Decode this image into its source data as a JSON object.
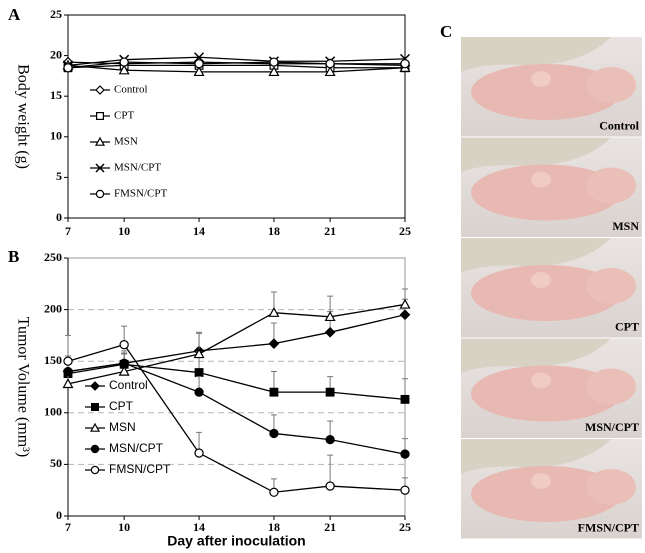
{
  "panels": {
    "a": "A",
    "b": "B",
    "c": "C"
  },
  "photos": [
    "Control",
    "MSN",
    "CPT",
    "MSN/CPT",
    "FMSN/CPT"
  ],
  "chart_data": [
    {
      "type": "line",
      "ylabel": "Body weight (g)",
      "x": [
        7,
        10,
        14,
        18,
        21,
        25
      ],
      "xlim": [
        7,
        25
      ],
      "xticks": [
        7,
        10,
        14,
        18,
        21,
        25
      ],
      "ylim": [
        0,
        25
      ],
      "yticks": [
        0,
        5,
        10,
        15,
        20,
        25
      ],
      "grid": false,
      "series": [
        {
          "name": "Control",
          "color": "#000000",
          "marker": "diamond",
          "filled": false,
          "values": [
            19.2,
            19.0,
            19.2,
            19.0,
            19.0,
            18.8
          ]
        },
        {
          "name": "CPT",
          "color": "#000000",
          "marker": "square",
          "filled": false,
          "values": [
            18.5,
            18.8,
            18.8,
            18.8,
            18.5,
            18.5
          ]
        },
        {
          "name": "MSN",
          "color": "#000000",
          "marker": "triangle",
          "filled": false,
          "values": [
            18.8,
            18.2,
            18.0,
            18.0,
            18.0,
            18.5
          ]
        },
        {
          "name": "MSN/CPT",
          "color": "#000000",
          "marker": "cross",
          "filled": false,
          "values": [
            18.8,
            19.5,
            19.8,
            19.3,
            19.3,
            19.6
          ]
        },
        {
          "name": "FMSN/CPT",
          "color": "#000000",
          "marker": "circle",
          "filled": false,
          "values": [
            18.5,
            19.2,
            19.0,
            19.2,
            19.0,
            19.0
          ]
        }
      ]
    },
    {
      "type": "line",
      "ylabel": "Tumor Volume (mm³)",
      "xlabel": "Day after inoculation",
      "x": [
        7,
        10,
        14,
        18,
        21,
        25
      ],
      "xlim": [
        7,
        25
      ],
      "xticks": [
        7,
        10,
        14,
        18,
        21,
        25
      ],
      "ylim": [
        0,
        250
      ],
      "yticks": [
        0,
        50,
        100,
        150,
        200,
        250
      ],
      "grid": true,
      "series": [
        {
          "name": "Control",
          "color": "#000000",
          "marker": "diamond",
          "filled": true,
          "values": [
            140,
            148,
            160,
            167,
            178,
            195
          ],
          "errors": [
            15,
            12,
            18,
            20,
            20,
            15
          ]
        },
        {
          "name": "CPT",
          "color": "#000000",
          "marker": "square",
          "filled": true,
          "values": [
            138,
            147,
            139,
            120,
            120,
            113
          ],
          "errors": [
            15,
            10,
            20,
            20,
            15,
            20
          ]
        },
        {
          "name": "MSN",
          "color": "#000000",
          "marker": "triangle",
          "filled": false,
          "values": [
            128,
            140,
            157,
            197,
            193,
            205
          ],
          "errors": [
            10,
            10,
            20,
            20,
            20,
            15
          ]
        },
        {
          "name": "MSN/CPT",
          "color": "#000000",
          "marker": "circle",
          "filled": true,
          "values": [
            140,
            148,
            120,
            80,
            74,
            60
          ],
          "errors": [
            10,
            10,
            15,
            18,
            18,
            15
          ]
        },
        {
          "name": "FMSN/CPT",
          "color": "#000000",
          "marker": "circle",
          "filled": false,
          "values": [
            150,
            166,
            61,
            23,
            29,
            25
          ],
          "errors": [
            25,
            18,
            20,
            13,
            30,
            12
          ]
        }
      ]
    }
  ]
}
